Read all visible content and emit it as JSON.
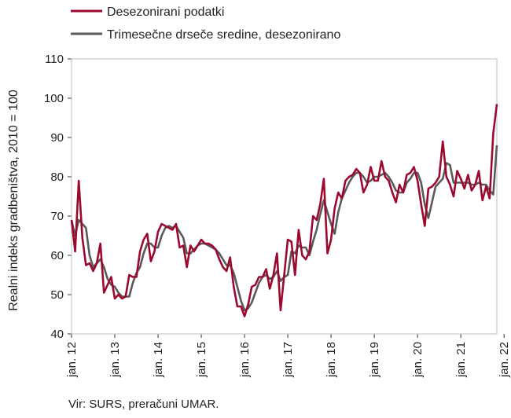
{
  "chart_data": {
    "type": "line",
    "title": "",
    "ylabel": "Realni indeks gradbeništva, 2010 = 100",
    "xlabel": "",
    "ylim": [
      40,
      110
    ],
    "yticks": [
      "40",
      "50",
      "60",
      "70",
      "80",
      "90",
      "100",
      "110"
    ],
    "xticks": [
      "jan. 12",
      "jan. 13",
      "jan. 14",
      "jan. 15",
      "jan. 16",
      "jan. 17",
      "jan. 18",
      "jan. 19",
      "jan. 20",
      "jan. 21",
      "jan. 22"
    ],
    "grid": false,
    "legend_position": "top-left",
    "x_start": "jan. 12",
    "x_frequency": "monthly",
    "series": [
      {
        "name": "Desezonirani podatki",
        "color": "#9b0a2e",
        "values": [
          69.0,
          61.0,
          79.0,
          64.5,
          57.5,
          58.0,
          56.0,
          58.0,
          63.0,
          50.5,
          52.5,
          54.5,
          49.0,
          50.0,
          49.0,
          49.5,
          55.0,
          54.5,
          54.5,
          61.0,
          64.0,
          65.5,
          58.5,
          61.0,
          66.0,
          68.0,
          67.5,
          67.0,
          66.5,
          68.0,
          62.0,
          62.5,
          57.0,
          62.5,
          61.0,
          62.5,
          64.0,
          63.0,
          63.0,
          62.5,
          61.5,
          59.0,
          57.0,
          56.0,
          59.5,
          52.0,
          47.0,
          47.0,
          44.5,
          47.5,
          52.0,
          52.5,
          54.5,
          54.5,
          56.5,
          51.5,
          55.0,
          60.5,
          46.0,
          55.0,
          64.0,
          63.5,
          55.0,
          66.5,
          60.0,
          59.0,
          61.0,
          70.0,
          69.0,
          73.0,
          79.5,
          60.5,
          64.0,
          72.0,
          76.0,
          74.5,
          79.0,
          80.0,
          80.5,
          82.0,
          81.0,
          76.0,
          78.0,
          82.5,
          79.0,
          79.0,
          84.0,
          80.0,
          79.0,
          76.0,
          73.5,
          78.0,
          76.0,
          80.5,
          81.0,
          82.5,
          79.0,
          73.0,
          67.5,
          77.0,
          77.5,
          78.5,
          80.0,
          89.0,
          80.0,
          78.0,
          75.0,
          81.5,
          79.5,
          77.0,
          80.5,
          76.5,
          78.0,
          81.5,
          74.0,
          77.5,
          74.5,
          91.0,
          98.5
        ]
      },
      {
        "name": "Trimesečne drseče sredine, desezonirano",
        "color": "#5a5a5a",
        "values": [
          69.0,
          65.0,
          69.0,
          68.0,
          67.0,
          60.0,
          57.0,
          58.0,
          59.0,
          57.0,
          54.0,
          52.5,
          52.0,
          50.5,
          49.5,
          49.5,
          49.5,
          53.0,
          55.5,
          57.0,
          60.5,
          63.0,
          63.0,
          62.0,
          62.0,
          65.0,
          67.0,
          67.5,
          67.0,
          67.5,
          66.0,
          64.5,
          60.5,
          60.5,
          61.5,
          62.5,
          63.0,
          63.0,
          62.5,
          62.0,
          61.5,
          60.5,
          59.0,
          57.5,
          57.5,
          55.5,
          52.0,
          48.5,
          46.0,
          46.5,
          48.0,
          50.5,
          53.0,
          54.5,
          55.0,
          54.0,
          54.5,
          56.0,
          53.5,
          54.5,
          55.0,
          61.0,
          60.5,
          62.5,
          62.0,
          62.0,
          60.0,
          63.5,
          66.5,
          70.5,
          74.0,
          71.0,
          68.0,
          65.5,
          71.0,
          74.5,
          76.5,
          78.5,
          80.0,
          81.0,
          81.0,
          80.0,
          78.5,
          79.0,
          80.0,
          80.0,
          80.5,
          81.0,
          80.0,
          78.5,
          76.5,
          76.0,
          76.0,
          78.5,
          79.5,
          81.0,
          81.0,
          78.5,
          73.0,
          69.5,
          73.5,
          77.5,
          78.5,
          79.5,
          83.5,
          83.0,
          78.5,
          78.5,
          78.5,
          78.5,
          78.5,
          78.0,
          78.0,
          78.5,
          78.0,
          78.0,
          76.5,
          75.5,
          88.0
        ]
      }
    ]
  },
  "source": "Vir: SURS, preračuni UMAR."
}
